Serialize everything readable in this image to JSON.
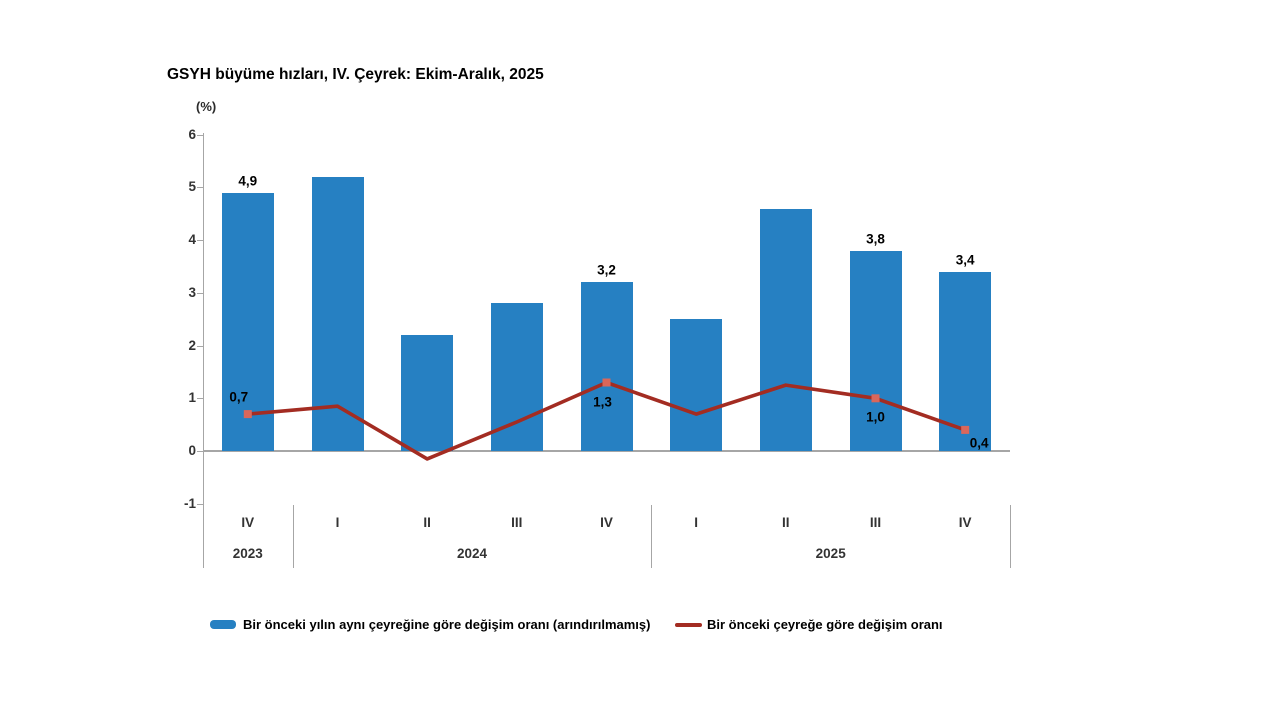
{
  "title": "GSYH büyüme hızları, IV. Çeyrek: Ekim-Aralık, 2025",
  "axis_unit_label": "(%)",
  "colors": {
    "bar": "#2680c2",
    "line": "#a32c22",
    "marker": "#d9675b",
    "axis": "#a6a6a6",
    "text": "#333333"
  },
  "legend": {
    "bar_label": "Bir önceki yılın aynı çeyreğine göre değişim oranı (arındırılmamış)",
    "line_label": "Bir önceki çeyreğe göre değişim oranı"
  },
  "chart_data": {
    "type": "bar",
    "subtype": "bar+line combo",
    "categories": [
      "IV",
      "I",
      "II",
      "III",
      "IV",
      "I",
      "II",
      "III",
      "IV"
    ],
    "year_groups": [
      {
        "label": "2023",
        "span": 1
      },
      {
        "label": "2024",
        "span": 4
      },
      {
        "label": "2025",
        "span": 4
      }
    ],
    "series": [
      {
        "name": "Bir önceki yılın aynı çeyreğine göre değişim oranı (arındırılmamış)",
        "type": "bar",
        "color": "#2680c2",
        "values": [
          4.9,
          5.2,
          2.2,
          2.8,
          3.2,
          2.5,
          4.6,
          3.8,
          3.4
        ],
        "labels": [
          "4,9",
          null,
          null,
          null,
          "3,2",
          null,
          null,
          "3,8",
          "3,4"
        ]
      },
      {
        "name": "Bir önceki çeyreğe göre değişim oranı",
        "type": "line",
        "color": "#a32c22",
        "marker_color": "#d9675b",
        "values": [
          0.7,
          0.85,
          -0.15,
          0.55,
          1.3,
          0.7,
          1.25,
          1.0,
          0.4
        ],
        "labels": [
          "0,7",
          null,
          null,
          null,
          "1,3",
          null,
          null,
          "1,0",
          "0,4"
        ],
        "markers": [
          true,
          false,
          false,
          false,
          true,
          false,
          false,
          true,
          true
        ]
      }
    ],
    "title": "GSYH büyüme hızları, IV. Çeyrek: Ekim-Aralık, 2025",
    "xlabel": "",
    "ylabel": "(%)",
    "ylim": [
      -1,
      6
    ],
    "yticks": [
      6,
      5,
      4,
      3,
      2,
      1,
      0,
      -1
    ],
    "grid": false,
    "legend_position": "bottom"
  }
}
